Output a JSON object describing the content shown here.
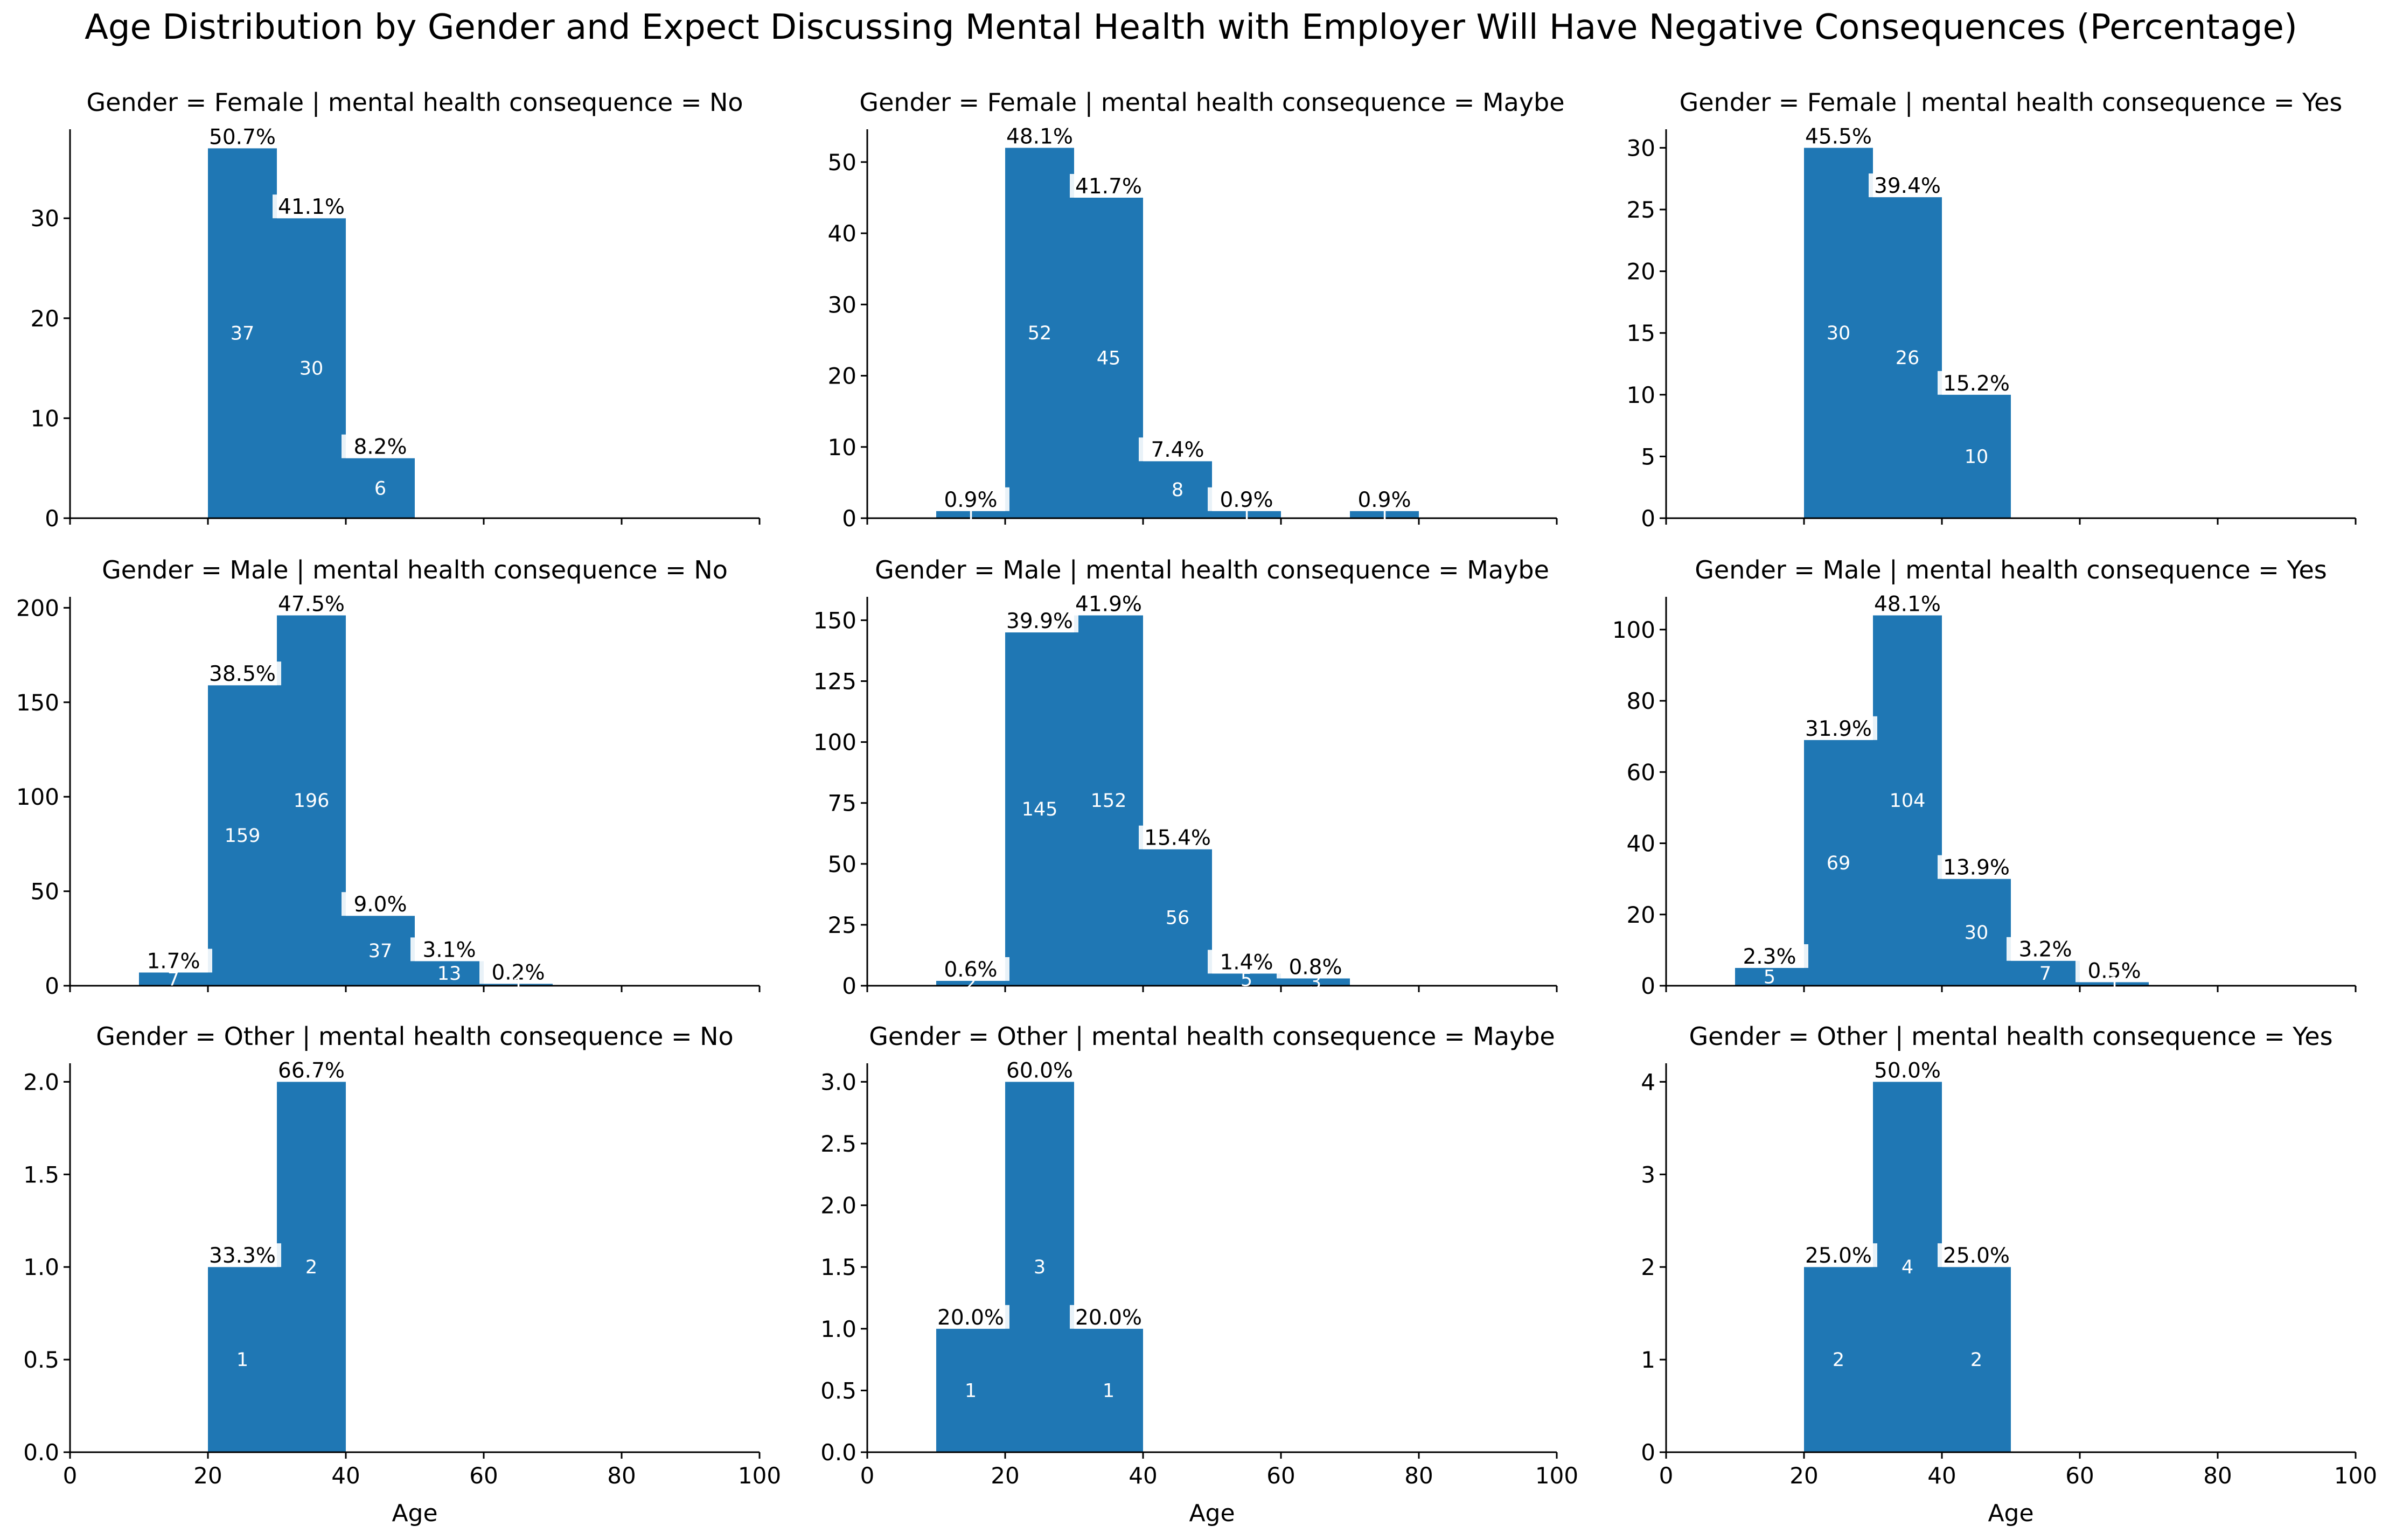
{
  "title": "Age Distribution by Gender and Expect Discussing Mental Health with Employer Will Have Negative Consequences (Percentage)",
  "colors": {
    "bar": "#1f77b4",
    "axis": "#000000",
    "count_text": "#ffffff",
    "label_bg": "#ffffff"
  },
  "chart_data": [
    {
      "type": "bar",
      "title": "Gender = Female | mental health consequence = No",
      "xlim": [
        0,
        100
      ],
      "xticks": [
        "0",
        "20",
        "40",
        "60",
        "80",
        "100"
      ],
      "xlabel": "",
      "ylim": [
        0,
        38.9
      ],
      "yticks": [
        "0",
        "10",
        "20",
        "30"
      ],
      "bins": [
        {
          "x0": 20,
          "x1": 30,
          "count": 37,
          "pct": "50.7%"
        },
        {
          "x0": 30,
          "x1": 40,
          "count": 30,
          "pct": "41.1%"
        },
        {
          "x0": 40,
          "x1": 50,
          "count": 6,
          "pct": "8.2%"
        }
      ]
    },
    {
      "type": "bar",
      "title": "Gender = Female | mental health consequence = Maybe",
      "xlim": [
        0,
        100
      ],
      "xticks": [
        "0",
        "20",
        "40",
        "60",
        "80",
        "100"
      ],
      "xlabel": "",
      "ylim": [
        0,
        54.6
      ],
      "yticks": [
        "0",
        "10",
        "20",
        "30",
        "40",
        "50"
      ],
      "bins": [
        {
          "x0": 10,
          "x1": 20,
          "count": 1,
          "pct": "0.9%"
        },
        {
          "x0": 20,
          "x1": 30,
          "count": 52,
          "pct": "48.1%"
        },
        {
          "x0": 30,
          "x1": 40,
          "count": 45,
          "pct": "41.7%"
        },
        {
          "x0": 40,
          "x1": 50,
          "count": 8,
          "pct": "7.4%"
        },
        {
          "x0": 50,
          "x1": 60,
          "count": 1,
          "pct": "0.9%"
        },
        {
          "x0": 70,
          "x1": 80,
          "count": 1,
          "pct": "0.9%"
        }
      ]
    },
    {
      "type": "bar",
      "title": "Gender = Female | mental health consequence = Yes",
      "xlim": [
        0,
        100
      ],
      "xticks": [
        "0",
        "20",
        "40",
        "60",
        "80",
        "100"
      ],
      "xlabel": "",
      "ylim": [
        0,
        31.5
      ],
      "yticks": [
        "0",
        "5",
        "10",
        "15",
        "20",
        "25",
        "30"
      ],
      "bins": [
        {
          "x0": 20,
          "x1": 30,
          "count": 30,
          "pct": "45.5%"
        },
        {
          "x0": 30,
          "x1": 40,
          "count": 26,
          "pct": "39.4%"
        },
        {
          "x0": 40,
          "x1": 50,
          "count": 10,
          "pct": "15.2%"
        }
      ]
    },
    {
      "type": "bar",
      "title": "Gender = Male | mental health consequence = No",
      "xlim": [
        0,
        100
      ],
      "xticks": [
        "0",
        "20",
        "40",
        "60",
        "80",
        "100"
      ],
      "xlabel": "",
      "ylim": [
        0,
        205.8
      ],
      "yticks": [
        "0",
        "50",
        "100",
        "150",
        "200"
      ],
      "bins": [
        {
          "x0": 10,
          "x1": 20,
          "count": 7,
          "pct": "1.7%"
        },
        {
          "x0": 20,
          "x1": 30,
          "count": 159,
          "pct": "38.5%"
        },
        {
          "x0": 30,
          "x1": 40,
          "count": 196,
          "pct": "47.5%"
        },
        {
          "x0": 40,
          "x1": 50,
          "count": 37,
          "pct": "9.0%"
        },
        {
          "x0": 50,
          "x1": 60,
          "count": 13,
          "pct": "3.1%"
        },
        {
          "x0": 60,
          "x1": 70,
          "count": 1,
          "pct": "0.2%"
        }
      ]
    },
    {
      "type": "bar",
      "title": "Gender = Male | mental health consequence = Maybe",
      "xlim": [
        0,
        100
      ],
      "xticks": [
        "0",
        "20",
        "40",
        "60",
        "80",
        "100"
      ],
      "xlabel": "",
      "ylim": [
        0,
        159.6
      ],
      "yticks": [
        "0",
        "25",
        "50",
        "75",
        "100",
        "125",
        "150"
      ],
      "bins": [
        {
          "x0": 10,
          "x1": 20,
          "count": 2,
          "pct": "0.6%"
        },
        {
          "x0": 20,
          "x1": 30,
          "count": 145,
          "pct": "39.9%"
        },
        {
          "x0": 30,
          "x1": 40,
          "count": 152,
          "pct": "41.9%"
        },
        {
          "x0": 40,
          "x1": 50,
          "count": 56,
          "pct": "15.4%"
        },
        {
          "x0": 50,
          "x1": 60,
          "count": 5,
          "pct": "1.4%"
        },
        {
          "x0": 60,
          "x1": 70,
          "count": 3,
          "pct": "0.8%"
        }
      ]
    },
    {
      "type": "bar",
      "title": "Gender = Male | mental health consequence = Yes",
      "xlim": [
        0,
        100
      ],
      "xticks": [
        "0",
        "20",
        "40",
        "60",
        "80",
        "100"
      ],
      "xlabel": "",
      "ylim": [
        0,
        109.2
      ],
      "yticks": [
        "0",
        "20",
        "40",
        "60",
        "80",
        "100"
      ],
      "bins": [
        {
          "x0": 10,
          "x1": 20,
          "count": 5,
          "pct": "2.3%"
        },
        {
          "x0": 20,
          "x1": 30,
          "count": 69,
          "pct": "31.9%"
        },
        {
          "x0": 30,
          "x1": 40,
          "count": 104,
          "pct": "48.1%"
        },
        {
          "x0": 40,
          "x1": 50,
          "count": 30,
          "pct": "13.9%"
        },
        {
          "x0": 50,
          "x1": 60,
          "count": 7,
          "pct": "3.2%"
        },
        {
          "x0": 60,
          "x1": 70,
          "count": 1,
          "pct": "0.5%"
        }
      ]
    },
    {
      "type": "bar",
      "title": "Gender = Other | mental health consequence = No",
      "xlim": [
        0,
        100
      ],
      "xticks": [
        "0",
        "20",
        "40",
        "60",
        "80",
        "100"
      ],
      "xlabel": "Age",
      "ylim": [
        0,
        2.1
      ],
      "yticks": [
        "0.0",
        "0.5",
        "1.0",
        "1.5",
        "2.0"
      ],
      "bins": [
        {
          "x0": 20,
          "x1": 30,
          "count": 1,
          "pct": "33.3%"
        },
        {
          "x0": 30,
          "x1": 40,
          "count": 2,
          "pct": "66.7%"
        }
      ]
    },
    {
      "type": "bar",
      "title": "Gender = Other | mental health consequence = Maybe",
      "xlim": [
        0,
        100
      ],
      "xticks": [
        "0",
        "20",
        "40",
        "60",
        "80",
        "100"
      ],
      "xlabel": "Age",
      "ylim": [
        0,
        3.15
      ],
      "yticks": [
        "0.0",
        "0.5",
        "1.0",
        "1.5",
        "2.0",
        "2.5",
        "3.0"
      ],
      "bins": [
        {
          "x0": 10,
          "x1": 20,
          "count": 1,
          "pct": "20.0%"
        },
        {
          "x0": 20,
          "x1": 30,
          "count": 3,
          "pct": "60.0%"
        },
        {
          "x0": 30,
          "x1": 40,
          "count": 1,
          "pct": "20.0%"
        }
      ]
    },
    {
      "type": "bar",
      "title": "Gender = Other | mental health consequence = Yes",
      "xlim": [
        0,
        100
      ],
      "xticks": [
        "0",
        "20",
        "40",
        "60",
        "80",
        "100"
      ],
      "xlabel": "Age",
      "ylim": [
        0,
        4.2
      ],
      "yticks": [
        "0",
        "1",
        "2",
        "3",
        "4"
      ],
      "bins": [
        {
          "x0": 20,
          "x1": 30,
          "count": 2,
          "pct": "25.0%"
        },
        {
          "x0": 30,
          "x1": 40,
          "count": 4,
          "pct": "50.0%"
        },
        {
          "x0": 40,
          "x1": 50,
          "count": 2,
          "pct": "25.0%"
        }
      ]
    }
  ]
}
